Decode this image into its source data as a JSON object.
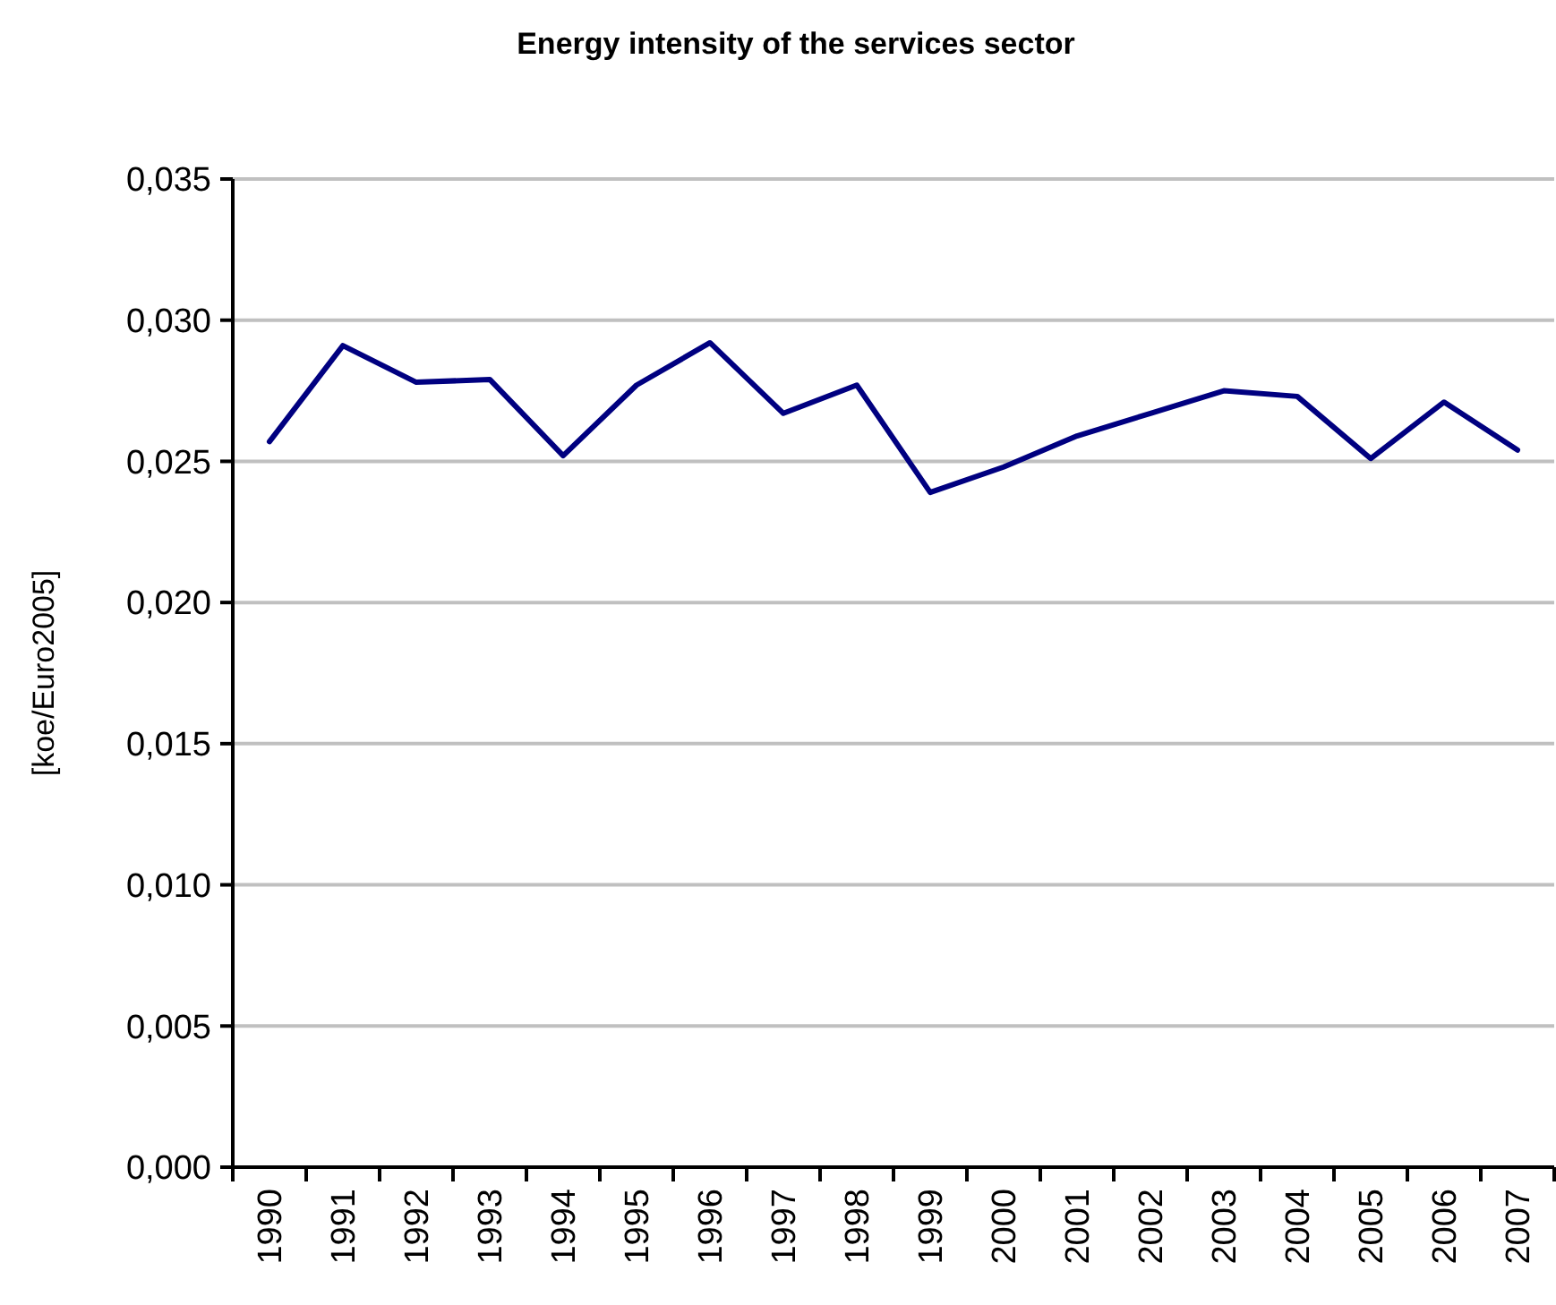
{
  "chart_data": {
    "type": "line",
    "title": "Energy intensity of the services sector",
    "ylabel": "[koe/Euro2005]",
    "categories": [
      "1990",
      "1991",
      "1992",
      "1993",
      "1994",
      "1995",
      "1996",
      "1997",
      "1998",
      "1999",
      "2000",
      "2001",
      "2002",
      "2003",
      "2004",
      "2005",
      "2006",
      "2007"
    ],
    "series": [
      {
        "color": "#000080",
        "values": [
          0.0257,
          0.0291,
          0.0278,
          0.0279,
          0.0252,
          0.0277,
          0.0292,
          0.0267,
          0.0277,
          0.0239,
          0.0248,
          0.0259,
          0.0267,
          0.0275,
          0.0273,
          0.0251,
          0.0271,
          0.0254
        ]
      }
    ],
    "ylim": [
      0,
      0.035
    ],
    "yticks": [
      {
        "value": 0,
        "label": "0,000"
      },
      {
        "value": 0.005,
        "label": "0,005"
      },
      {
        "value": 0.01,
        "label": "0,010"
      },
      {
        "value": 0.015,
        "label": "0,015"
      },
      {
        "value": 0.02,
        "label": "0,020"
      },
      {
        "value": 0.025,
        "label": "0,025"
      },
      {
        "value": 0.03,
        "label": "0,030"
      },
      {
        "value": 0.035,
        "label": "0,035"
      }
    ],
    "grid": "y",
    "marker": "none",
    "line_style": "solid"
  }
}
